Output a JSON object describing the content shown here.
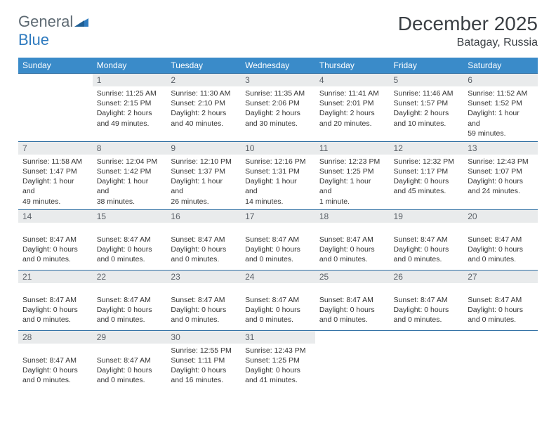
{
  "colors": {
    "header_bg": "#3a8bc9",
    "header_text": "#ffffff",
    "daynum_bg": "#e9ebec",
    "daynum_text": "#5b6168",
    "row_border": "#2f6fa3",
    "body_text": "#333333",
    "logo_gray": "#5e6a73",
    "logo_blue": "#2f7bbf"
  },
  "logo": {
    "part1": "General",
    "part2": "Blue"
  },
  "title": "December 2025",
  "subtitle": "Batagay, Russia",
  "days_of_week": [
    "Sunday",
    "Monday",
    "Tuesday",
    "Wednesday",
    "Thursday",
    "Friday",
    "Saturday"
  ],
  "weeks": [
    [
      {
        "num": "",
        "lines": []
      },
      {
        "num": "1",
        "lines": [
          "Sunrise: 11:25 AM",
          "Sunset: 2:15 PM",
          "Daylight: 2 hours",
          "and 49 minutes."
        ]
      },
      {
        "num": "2",
        "lines": [
          "Sunrise: 11:30 AM",
          "Sunset: 2:10 PM",
          "Daylight: 2 hours",
          "and 40 minutes."
        ]
      },
      {
        "num": "3",
        "lines": [
          "Sunrise: 11:35 AM",
          "Sunset: 2:06 PM",
          "Daylight: 2 hours",
          "and 30 minutes."
        ]
      },
      {
        "num": "4",
        "lines": [
          "Sunrise: 11:41 AM",
          "Sunset: 2:01 PM",
          "Daylight: 2 hours",
          "and 20 minutes."
        ]
      },
      {
        "num": "5",
        "lines": [
          "Sunrise: 11:46 AM",
          "Sunset: 1:57 PM",
          "Daylight: 2 hours",
          "and 10 minutes."
        ]
      },
      {
        "num": "6",
        "lines": [
          "Sunrise: 11:52 AM",
          "Sunset: 1:52 PM",
          "Daylight: 1 hour and",
          "59 minutes."
        ]
      }
    ],
    [
      {
        "num": "7",
        "lines": [
          "Sunrise: 11:58 AM",
          "Sunset: 1:47 PM",
          "Daylight: 1 hour and",
          "49 minutes."
        ]
      },
      {
        "num": "8",
        "lines": [
          "Sunrise: 12:04 PM",
          "Sunset: 1:42 PM",
          "Daylight: 1 hour and",
          "38 minutes."
        ]
      },
      {
        "num": "9",
        "lines": [
          "Sunrise: 12:10 PM",
          "Sunset: 1:37 PM",
          "Daylight: 1 hour and",
          "26 minutes."
        ]
      },
      {
        "num": "10",
        "lines": [
          "Sunrise: 12:16 PM",
          "Sunset: 1:31 PM",
          "Daylight: 1 hour and",
          "14 minutes."
        ]
      },
      {
        "num": "11",
        "lines": [
          "Sunrise: 12:23 PM",
          "Sunset: 1:25 PM",
          "Daylight: 1 hour and",
          "1 minute."
        ]
      },
      {
        "num": "12",
        "lines": [
          "Sunrise: 12:32 PM",
          "Sunset: 1:17 PM",
          "Daylight: 0 hours",
          "and 45 minutes."
        ]
      },
      {
        "num": "13",
        "lines": [
          "Sunrise: 12:43 PM",
          "Sunset: 1:07 PM",
          "Daylight: 0 hours",
          "and 24 minutes."
        ]
      }
    ],
    [
      {
        "num": "14",
        "lines": [
          "",
          "Sunset: 8:47 AM",
          "Daylight: 0 hours",
          "and 0 minutes."
        ]
      },
      {
        "num": "15",
        "lines": [
          "",
          "Sunset: 8:47 AM",
          "Daylight: 0 hours",
          "and 0 minutes."
        ]
      },
      {
        "num": "16",
        "lines": [
          "",
          "Sunset: 8:47 AM",
          "Daylight: 0 hours",
          "and 0 minutes."
        ]
      },
      {
        "num": "17",
        "lines": [
          "",
          "Sunset: 8:47 AM",
          "Daylight: 0 hours",
          "and 0 minutes."
        ]
      },
      {
        "num": "18",
        "lines": [
          "",
          "Sunset: 8:47 AM",
          "Daylight: 0 hours",
          "and 0 minutes."
        ]
      },
      {
        "num": "19",
        "lines": [
          "",
          "Sunset: 8:47 AM",
          "Daylight: 0 hours",
          "and 0 minutes."
        ]
      },
      {
        "num": "20",
        "lines": [
          "",
          "Sunset: 8:47 AM",
          "Daylight: 0 hours",
          "and 0 minutes."
        ]
      }
    ],
    [
      {
        "num": "21",
        "lines": [
          "",
          "Sunset: 8:47 AM",
          "Daylight: 0 hours",
          "and 0 minutes."
        ]
      },
      {
        "num": "22",
        "lines": [
          "",
          "Sunset: 8:47 AM",
          "Daylight: 0 hours",
          "and 0 minutes."
        ]
      },
      {
        "num": "23",
        "lines": [
          "",
          "Sunset: 8:47 AM",
          "Daylight: 0 hours",
          "and 0 minutes."
        ]
      },
      {
        "num": "24",
        "lines": [
          "",
          "Sunset: 8:47 AM",
          "Daylight: 0 hours",
          "and 0 minutes."
        ]
      },
      {
        "num": "25",
        "lines": [
          "",
          "Sunset: 8:47 AM",
          "Daylight: 0 hours",
          "and 0 minutes."
        ]
      },
      {
        "num": "26",
        "lines": [
          "",
          "Sunset: 8:47 AM",
          "Daylight: 0 hours",
          "and 0 minutes."
        ]
      },
      {
        "num": "27",
        "lines": [
          "",
          "Sunset: 8:47 AM",
          "Daylight: 0 hours",
          "and 0 minutes."
        ]
      }
    ],
    [
      {
        "num": "28",
        "lines": [
          "",
          "Sunset: 8:47 AM",
          "Daylight: 0 hours",
          "and 0 minutes."
        ]
      },
      {
        "num": "29",
        "lines": [
          "",
          "Sunset: 8:47 AM",
          "Daylight: 0 hours",
          "and 0 minutes."
        ]
      },
      {
        "num": "30",
        "lines": [
          "Sunrise: 12:55 PM",
          "Sunset: 1:11 PM",
          "Daylight: 0 hours",
          "and 16 minutes."
        ]
      },
      {
        "num": "31",
        "lines": [
          "Sunrise: 12:43 PM",
          "Sunset: 1:25 PM",
          "Daylight: 0 hours",
          "and 41 minutes."
        ]
      },
      {
        "num": "",
        "lines": []
      },
      {
        "num": "",
        "lines": []
      },
      {
        "num": "",
        "lines": []
      }
    ]
  ]
}
